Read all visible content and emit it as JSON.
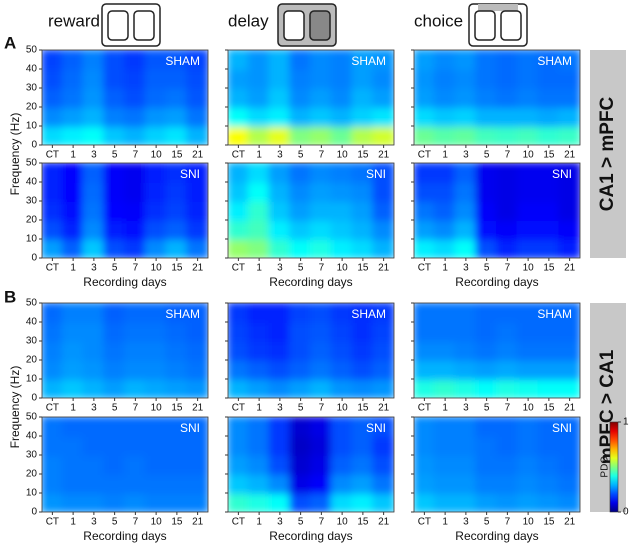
{
  "columns": [
    "reward",
    "delay",
    "choice"
  ],
  "panel_labels": [
    "A",
    "B"
  ],
  "row_labels": [
    "CA1 > mPFC",
    "mPFC > CA1"
  ],
  "x_label": "Recording days",
  "y_label": "Frequency (Hz)",
  "colorbar": {
    "label": "PDC",
    "lim": [
      0,
      1
    ],
    "ticks": [
      0,
      1
    ]
  },
  "chart_data": [
    {
      "type": "heatmap",
      "title": "SHAM",
      "categories": [
        "CT",
        "1",
        "3",
        "5",
        "7",
        "10",
        "15",
        "21"
      ],
      "ylim": [
        0,
        50
      ],
      "yticks": [
        0,
        10,
        20,
        30,
        40,
        50
      ],
      "zlim": [
        0,
        1
      ],
      "z": [
        [
          0.34,
          0.36,
          0.38,
          0.32,
          0.3,
          0.33,
          0.35,
          0.3
        ],
        [
          0.26,
          0.28,
          0.3,
          0.25,
          0.24,
          0.27,
          0.28,
          0.24
        ],
        [
          0.22,
          0.24,
          0.27,
          0.22,
          0.2,
          0.23,
          0.24,
          0.21
        ],
        [
          0.2,
          0.23,
          0.26,
          0.2,
          0.19,
          0.22,
          0.22,
          0.2
        ],
        [
          0.19,
          0.22,
          0.25,
          0.2,
          0.18,
          0.21,
          0.21,
          0.19
        ]
      ]
    },
    {
      "type": "heatmap",
      "title": "SHAM",
      "categories": [
        "CT",
        "1",
        "3",
        "5",
        "7",
        "10",
        "15",
        "21"
      ],
      "ylim": [
        0,
        50
      ],
      "yticks": [
        0,
        10,
        20,
        30,
        40,
        50
      ],
      "zlim": [
        0,
        1
      ],
      "z": [
        [
          0.62,
          0.55,
          0.6,
          0.5,
          0.52,
          0.48,
          0.55,
          0.58
        ],
        [
          0.38,
          0.34,
          0.36,
          0.3,
          0.32,
          0.3,
          0.33,
          0.35
        ],
        [
          0.3,
          0.28,
          0.32,
          0.26,
          0.28,
          0.26,
          0.3,
          0.28
        ],
        [
          0.28,
          0.27,
          0.3,
          0.25,
          0.26,
          0.25,
          0.28,
          0.26
        ],
        [
          0.3,
          0.27,
          0.3,
          0.24,
          0.26,
          0.25,
          0.28,
          0.27
        ]
      ]
    },
    {
      "type": "heatmap",
      "title": "SHAM",
      "categories": [
        "CT",
        "1",
        "3",
        "5",
        "7",
        "10",
        "15",
        "21"
      ],
      "ylim": [
        0,
        50
      ],
      "yticks": [
        0,
        10,
        20,
        30,
        40,
        50
      ],
      "zlim": [
        0,
        1
      ],
      "z": [
        [
          0.48,
          0.46,
          0.47,
          0.44,
          0.43,
          0.44,
          0.42,
          0.43
        ],
        [
          0.34,
          0.32,
          0.33,
          0.3,
          0.3,
          0.3,
          0.29,
          0.3
        ],
        [
          0.28,
          0.26,
          0.27,
          0.25,
          0.24,
          0.25,
          0.24,
          0.24
        ],
        [
          0.27,
          0.25,
          0.26,
          0.24,
          0.23,
          0.24,
          0.23,
          0.23
        ],
        [
          0.28,
          0.26,
          0.27,
          0.24,
          0.23,
          0.24,
          0.23,
          0.24
        ]
      ]
    },
    {
      "type": "heatmap",
      "title": "SNI",
      "categories": [
        "CT",
        "1",
        "3",
        "5",
        "7",
        "10",
        "15",
        "21"
      ],
      "ylim": [
        0,
        50
      ],
      "yticks": [
        0,
        10,
        20,
        30,
        40,
        50
      ],
      "zlim": [
        0,
        1
      ],
      "z": [
        [
          0.28,
          0.22,
          0.32,
          0.2,
          0.18,
          0.26,
          0.3,
          0.24
        ],
        [
          0.2,
          0.16,
          0.26,
          0.15,
          0.14,
          0.2,
          0.22,
          0.18
        ],
        [
          0.17,
          0.14,
          0.24,
          0.13,
          0.12,
          0.17,
          0.19,
          0.16
        ],
        [
          0.16,
          0.13,
          0.23,
          0.12,
          0.11,
          0.16,
          0.18,
          0.15
        ],
        [
          0.16,
          0.13,
          0.22,
          0.12,
          0.11,
          0.15,
          0.17,
          0.15
        ]
      ]
    },
    {
      "type": "heatmap",
      "title": "SNI",
      "categories": [
        "CT",
        "1",
        "3",
        "5",
        "7",
        "10",
        "15",
        "21"
      ],
      "ylim": [
        0,
        50
      ],
      "yticks": [
        0,
        10,
        20,
        30,
        40,
        50
      ],
      "zlim": [
        0,
        1
      ],
      "z": [
        [
          0.52,
          0.5,
          0.42,
          0.38,
          0.4,
          0.36,
          0.34,
          0.3
        ],
        [
          0.42,
          0.44,
          0.36,
          0.32,
          0.34,
          0.32,
          0.3,
          0.26
        ],
        [
          0.36,
          0.42,
          0.32,
          0.28,
          0.3,
          0.3,
          0.28,
          0.22
        ],
        [
          0.32,
          0.38,
          0.3,
          0.26,
          0.28,
          0.27,
          0.26,
          0.2
        ],
        [
          0.3,
          0.34,
          0.28,
          0.24,
          0.26,
          0.25,
          0.24,
          0.2
        ]
      ]
    },
    {
      "type": "heatmap",
      "title": "SNI",
      "categories": [
        "CT",
        "1",
        "3",
        "5",
        "7",
        "10",
        "15",
        "21"
      ],
      "ylim": [
        0,
        50
      ],
      "yticks": [
        0,
        10,
        20,
        30,
        40,
        50
      ],
      "zlim": [
        0,
        1
      ],
      "z": [
        [
          0.36,
          0.34,
          0.38,
          0.2,
          0.16,
          0.18,
          0.18,
          0.15
        ],
        [
          0.28,
          0.26,
          0.3,
          0.14,
          0.12,
          0.14,
          0.14,
          0.12
        ],
        [
          0.24,
          0.22,
          0.26,
          0.12,
          0.1,
          0.12,
          0.12,
          0.1
        ],
        [
          0.2,
          0.2,
          0.24,
          0.11,
          0.1,
          0.11,
          0.11,
          0.1
        ],
        [
          0.18,
          0.18,
          0.22,
          0.11,
          0.1,
          0.11,
          0.11,
          0.1
        ]
      ]
    },
    {
      "type": "heatmap",
      "title": "SHAM",
      "categories": [
        "CT",
        "1",
        "3",
        "5",
        "7",
        "10",
        "15",
        "21"
      ],
      "ylim": [
        0,
        50
      ],
      "yticks": [
        0,
        10,
        20,
        30,
        40,
        50
      ],
      "zlim": [
        0,
        1
      ],
      "z": [
        [
          0.3,
          0.32,
          0.3,
          0.28,
          0.3,
          0.29,
          0.28,
          0.27
        ],
        [
          0.26,
          0.28,
          0.27,
          0.25,
          0.26,
          0.26,
          0.25,
          0.24
        ],
        [
          0.25,
          0.27,
          0.26,
          0.24,
          0.25,
          0.25,
          0.24,
          0.23
        ],
        [
          0.24,
          0.26,
          0.26,
          0.23,
          0.24,
          0.24,
          0.23,
          0.22
        ],
        [
          0.23,
          0.25,
          0.25,
          0.22,
          0.23,
          0.23,
          0.22,
          0.22
        ]
      ]
    },
    {
      "type": "heatmap",
      "title": "SHAM",
      "categories": [
        "CT",
        "1",
        "3",
        "5",
        "7",
        "10",
        "15",
        "21"
      ],
      "ylim": [
        0,
        50
      ],
      "yticks": [
        0,
        10,
        20,
        30,
        40,
        50
      ],
      "zlim": [
        0,
        1
      ],
      "z": [
        [
          0.3,
          0.28,
          0.26,
          0.28,
          0.3,
          0.27,
          0.26,
          0.27
        ],
        [
          0.24,
          0.22,
          0.2,
          0.22,
          0.24,
          0.22,
          0.2,
          0.22
        ],
        [
          0.2,
          0.18,
          0.17,
          0.2,
          0.22,
          0.2,
          0.18,
          0.2
        ],
        [
          0.19,
          0.17,
          0.16,
          0.2,
          0.21,
          0.19,
          0.17,
          0.19
        ],
        [
          0.18,
          0.16,
          0.16,
          0.19,
          0.2,
          0.18,
          0.17,
          0.18
        ]
      ]
    },
    {
      "type": "heatmap",
      "title": "SHAM",
      "categories": [
        "CT",
        "1",
        "3",
        "5",
        "7",
        "10",
        "15",
        "21"
      ],
      "ylim": [
        0,
        50
      ],
      "yticks": [
        0,
        10,
        20,
        30,
        40,
        50
      ],
      "zlim": [
        0,
        1
      ],
      "z": [
        [
          0.4,
          0.42,
          0.4,
          0.38,
          0.4,
          0.39,
          0.38,
          0.38
        ],
        [
          0.3,
          0.3,
          0.29,
          0.28,
          0.29,
          0.28,
          0.28,
          0.28
        ],
        [
          0.26,
          0.26,
          0.25,
          0.24,
          0.25,
          0.24,
          0.24,
          0.24
        ],
        [
          0.24,
          0.24,
          0.24,
          0.23,
          0.24,
          0.23,
          0.23,
          0.23
        ],
        [
          0.24,
          0.24,
          0.24,
          0.23,
          0.23,
          0.23,
          0.23,
          0.23
        ]
      ]
    },
    {
      "type": "heatmap",
      "title": "SNI",
      "categories": [
        "CT",
        "1",
        "3",
        "5",
        "7",
        "10",
        "15",
        "21"
      ],
      "ylim": [
        0,
        50
      ],
      "yticks": [
        0,
        10,
        20,
        30,
        40,
        50
      ],
      "zlim": [
        0,
        1
      ],
      "z": [
        [
          0.27,
          0.26,
          0.26,
          0.25,
          0.26,
          0.25,
          0.25,
          0.25
        ],
        [
          0.25,
          0.24,
          0.24,
          0.24,
          0.24,
          0.24,
          0.24,
          0.24
        ],
        [
          0.25,
          0.24,
          0.24,
          0.23,
          0.24,
          0.23,
          0.23,
          0.23
        ],
        [
          0.24,
          0.24,
          0.23,
          0.23,
          0.23,
          0.23,
          0.23,
          0.23
        ],
        [
          0.24,
          0.23,
          0.23,
          0.23,
          0.23,
          0.23,
          0.23,
          0.23
        ]
      ]
    },
    {
      "type": "heatmap",
      "title": "SNI",
      "categories": [
        "CT",
        "1",
        "3",
        "5",
        "7",
        "10",
        "15",
        "21"
      ],
      "ylim": [
        0,
        50
      ],
      "yticks": [
        0,
        10,
        20,
        30,
        40,
        50
      ],
      "zlim": [
        0,
        1
      ],
      "z": [
        [
          0.42,
          0.4,
          0.38,
          0.2,
          0.22,
          0.34,
          0.36,
          0.32
        ],
        [
          0.32,
          0.3,
          0.26,
          0.1,
          0.12,
          0.26,
          0.28,
          0.24
        ],
        [
          0.28,
          0.26,
          0.2,
          0.08,
          0.1,
          0.22,
          0.24,
          0.2
        ],
        [
          0.26,
          0.24,
          0.18,
          0.07,
          0.09,
          0.2,
          0.22,
          0.18
        ],
        [
          0.26,
          0.24,
          0.18,
          0.08,
          0.1,
          0.2,
          0.22,
          0.2
        ]
      ]
    },
    {
      "type": "heatmap",
      "title": "SNI",
      "categories": [
        "CT",
        "1",
        "3",
        "5",
        "7",
        "10",
        "15",
        "21"
      ],
      "ylim": [
        0,
        50
      ],
      "yticks": [
        0,
        10,
        20,
        30,
        40,
        50
      ],
      "zlim": [
        0,
        1
      ],
      "z": [
        [
          0.32,
          0.3,
          0.3,
          0.28,
          0.27,
          0.28,
          0.27,
          0.26
        ],
        [
          0.28,
          0.27,
          0.27,
          0.25,
          0.25,
          0.26,
          0.25,
          0.24
        ],
        [
          0.27,
          0.26,
          0.26,
          0.24,
          0.24,
          0.25,
          0.24,
          0.23
        ],
        [
          0.26,
          0.25,
          0.25,
          0.24,
          0.23,
          0.24,
          0.23,
          0.23
        ],
        [
          0.26,
          0.25,
          0.25,
          0.23,
          0.23,
          0.24,
          0.23,
          0.23
        ]
      ]
    }
  ]
}
